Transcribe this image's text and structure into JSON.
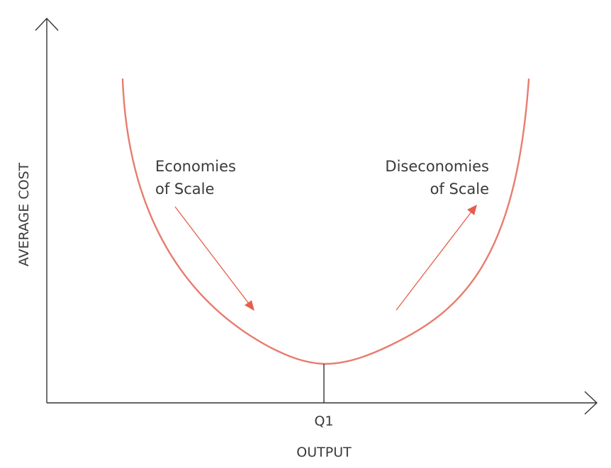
{
  "diagram": {
    "y_axis_label": "AVERAGE COST",
    "x_axis_label": "OUTPUT",
    "x_tick_label": "Q1",
    "left_annotation": {
      "line1": "Economies",
      "line2": "of Scale"
    },
    "right_annotation": {
      "line1": "Diseconomies",
      "line2": "of Scale"
    },
    "colors": {
      "curve": "#e87c6e",
      "arrows": "#e55f4c",
      "axes": "#333333",
      "text": "#3a3a3a"
    }
  }
}
